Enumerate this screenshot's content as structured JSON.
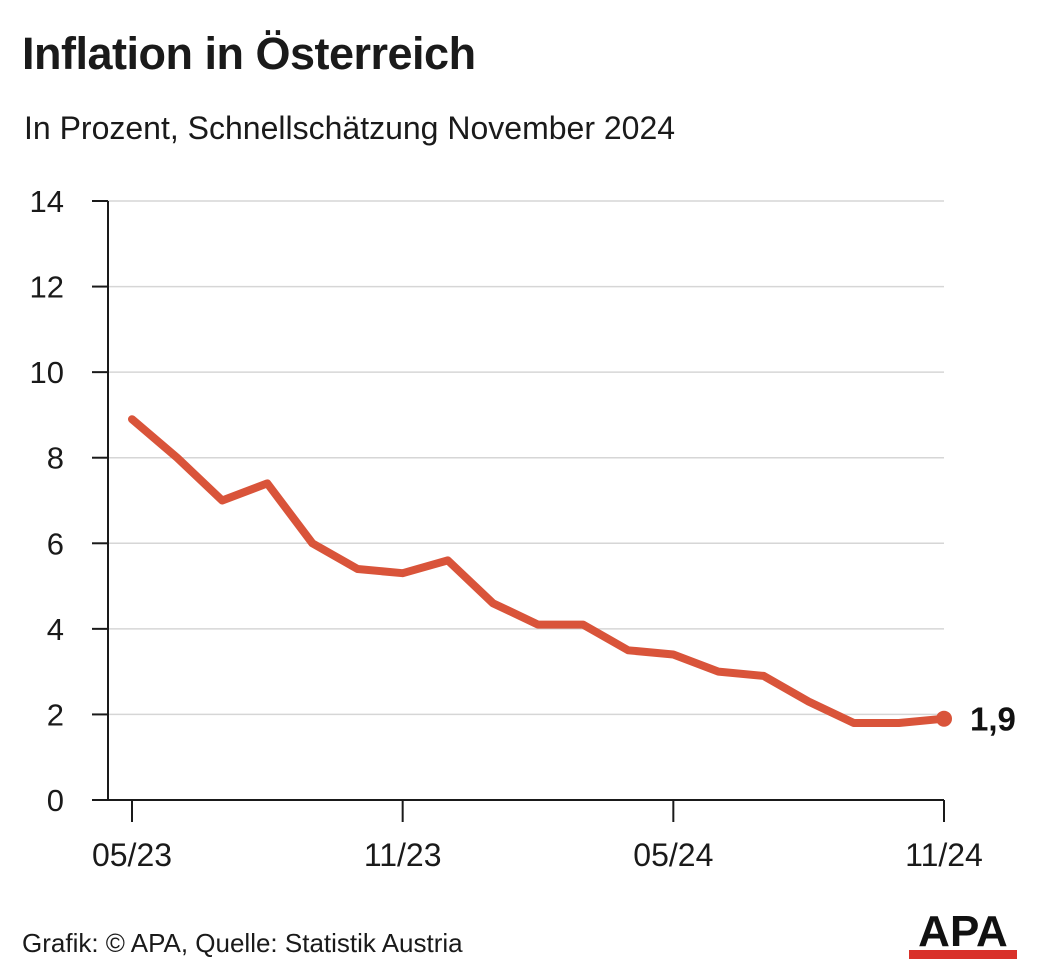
{
  "header": {
    "title": "Inflation in Österreich",
    "subtitle": "In Prozent, Schnellschätzung November 2024"
  },
  "footer": {
    "credit": "Grafik: © APA, Quelle: Statistik Austria",
    "logo_text": "APA"
  },
  "colors": {
    "line": "#d9543a",
    "grid": "#d6d6d6",
    "axis": "#1a1a1a",
    "logo_red": "#d9312a"
  },
  "chart_data": {
    "type": "line",
    "title": "Inflation in Österreich",
    "subtitle": "In Prozent, Schnellschätzung November 2024",
    "x": [
      "05/23",
      "06/23",
      "07/23",
      "08/23",
      "09/23",
      "10/23",
      "11/23",
      "12/23",
      "01/24",
      "02/24",
      "03/24",
      "04/24",
      "05/24",
      "06/24",
      "07/24",
      "08/24",
      "09/24",
      "10/24",
      "11/24"
    ],
    "series": [
      {
        "values": [
          8.9,
          8.0,
          7.0,
          7.4,
          6.0,
          5.4,
          5.3,
          5.6,
          4.6,
          4.1,
          4.1,
          3.5,
          3.4,
          3.0,
          2.9,
          2.3,
          1.8,
          1.8,
          1.9
        ]
      }
    ],
    "x_tick_labels": [
      "05/23",
      "11/23",
      "05/24",
      "11/24"
    ],
    "y_ticks": [
      0,
      2,
      4,
      6,
      8,
      10,
      12,
      14
    ],
    "ylim": [
      0,
      14
    ],
    "grid": true,
    "end_label": "1,9"
  }
}
